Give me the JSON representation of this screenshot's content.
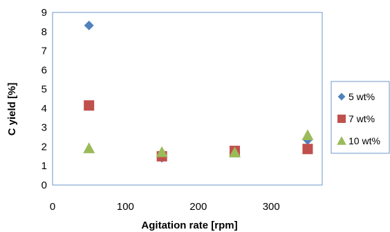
{
  "chart_data": {
    "type": "scatter",
    "title": "",
    "xlabel": "Agitation rate [rpm]",
    "ylabel": "C yield [%]",
    "xlim": [
      0,
      370
    ],
    "ylim": [
      0,
      9
    ],
    "xticks": [
      0,
      100,
      200,
      300
    ],
    "yticks": [
      0,
      1,
      2,
      3,
      4,
      5,
      6,
      7,
      8,
      9
    ],
    "grid": false,
    "legend_position": "right",
    "series": [
      {
        "name": "5 wt%",
        "marker": "diamond",
        "color": "#4f81bd",
        "x": [
          50,
          150,
          250,
          350
        ],
        "y": [
          8.32,
          1.42,
          1.72,
          2.35
        ]
      },
      {
        "name": "7 wt%",
        "marker": "square",
        "color": "#c0504d",
        "x": [
          50,
          150,
          250,
          350
        ],
        "y": [
          4.15,
          1.5,
          1.78,
          1.88
        ]
      },
      {
        "name": "10 wt%",
        "marker": "triangle",
        "color": "#9bbb59",
        "x": [
          50,
          150,
          250,
          350
        ],
        "y": [
          1.92,
          1.72,
          1.7,
          2.6
        ]
      }
    ]
  }
}
